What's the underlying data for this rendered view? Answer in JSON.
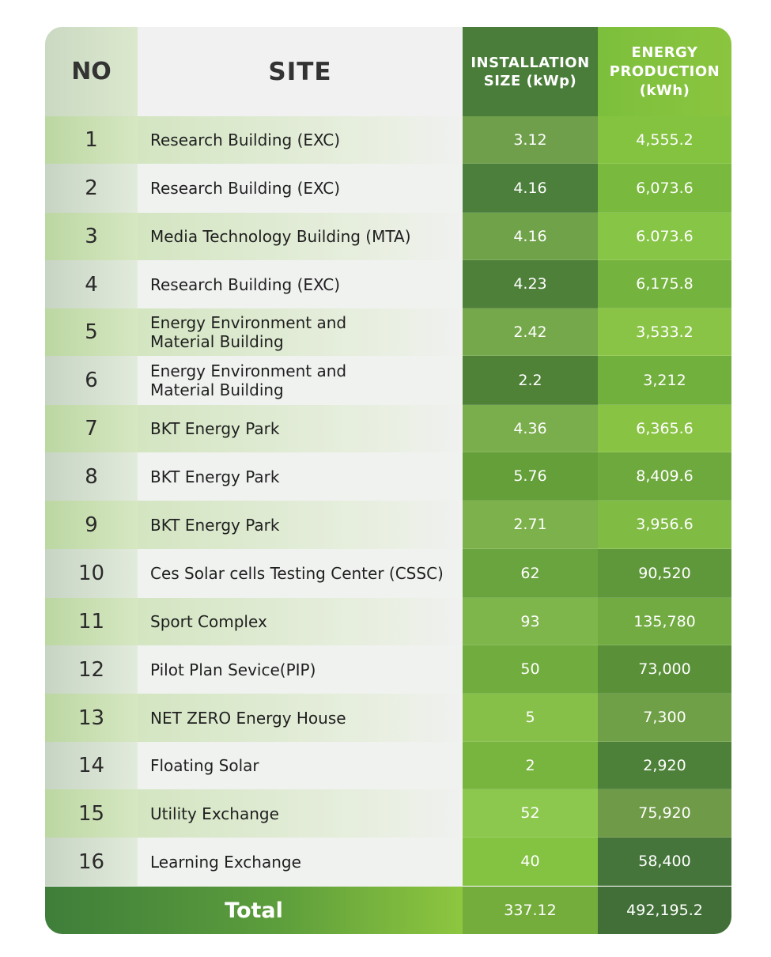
{
  "headers": {
    "no": "NO",
    "site": "SITE",
    "installation": "INSTALLATION\nSIZE (kWp)",
    "energy": "ENERGY\nPRODUCTION\n(kWh)"
  },
  "rows": [
    {
      "no": "1",
      "site": "Research Building (EXC)",
      "installation": "3.12",
      "energy": "4,555.2"
    },
    {
      "no": "2",
      "site": "Research Building (EXC)",
      "installation": "4.16",
      "energy": "6,073.6"
    },
    {
      "no": "3",
      "site": "Media Technology Building (MTA)",
      "installation": "4.16",
      "energy": "6.073.6"
    },
    {
      "no": "4",
      "site": "Research Building (EXC)",
      "installation": "4.23",
      "energy": "6,175.8"
    },
    {
      "no": "5",
      "site": "Energy Environment and\nMaterial Building",
      "installation": "2.42",
      "energy": "3,533.2"
    },
    {
      "no": "6",
      "site": "Energy Environment and\nMaterial Building",
      "installation": "2.2",
      "energy": "3,212"
    },
    {
      "no": "7",
      "site": "BKT Energy Park",
      "installation": "4.36",
      "energy": "6,365.6"
    },
    {
      "no": "8",
      "site": "BKT Energy Park",
      "installation": "5.76",
      "energy": "8,409.6"
    },
    {
      "no": "9",
      "site": "BKT Energy Park",
      "installation": "2.71",
      "energy": "3,956.6"
    },
    {
      "no": "10",
      "site": "Ces Solar cells Testing Center (CSSC)",
      "installation": "62",
      "energy": "90,520"
    },
    {
      "no": "11",
      "site": "Sport Complex",
      "installation": "93",
      "energy": "135,780"
    },
    {
      "no": "12",
      "site": "Pilot Plan Sevice(PIP)",
      "installation": "50",
      "energy": "73,000"
    },
    {
      "no": "13",
      "site": "NET ZERO Energy House",
      "installation": "5",
      "energy": "7,300"
    },
    {
      "no": "14",
      "site": "Floating Solar",
      "installation": "2",
      "energy": "2,920"
    },
    {
      "no": "15",
      "site": "Utility Exchange",
      "installation": "52",
      "energy": "75,920"
    },
    {
      "no": "16",
      "site": "Learning Exchange",
      "installation": "40",
      "energy": "58,400"
    }
  ],
  "total": {
    "label": "Total",
    "installation": "337.12",
    "energy": "492,195.2"
  },
  "colors": {
    "installation_cells": [
      "#6f9f4b",
      "#4c7f3b",
      "#70a24a",
      "#4e8039",
      "#75a84a",
      "#4f8137",
      "#7aad4b",
      "#649f3a",
      "#7cb14b",
      "#6aa43f",
      "#7fb64c",
      "#70ad3e",
      "#86c049",
      "#77b53f",
      "#8cc84e",
      "#84c341"
    ],
    "energy_cells": [
      "#84c340",
      "#79b93d",
      "#86c545",
      "#74b43e",
      "#8ac446",
      "#71b03c",
      "#88c344",
      "#6ea93d",
      "#80bb44",
      "#5f983a",
      "#72ab42",
      "#5a9138",
      "#6f9f46",
      "#4d8038",
      "#6f9a48",
      "#45753a"
    ]
  }
}
